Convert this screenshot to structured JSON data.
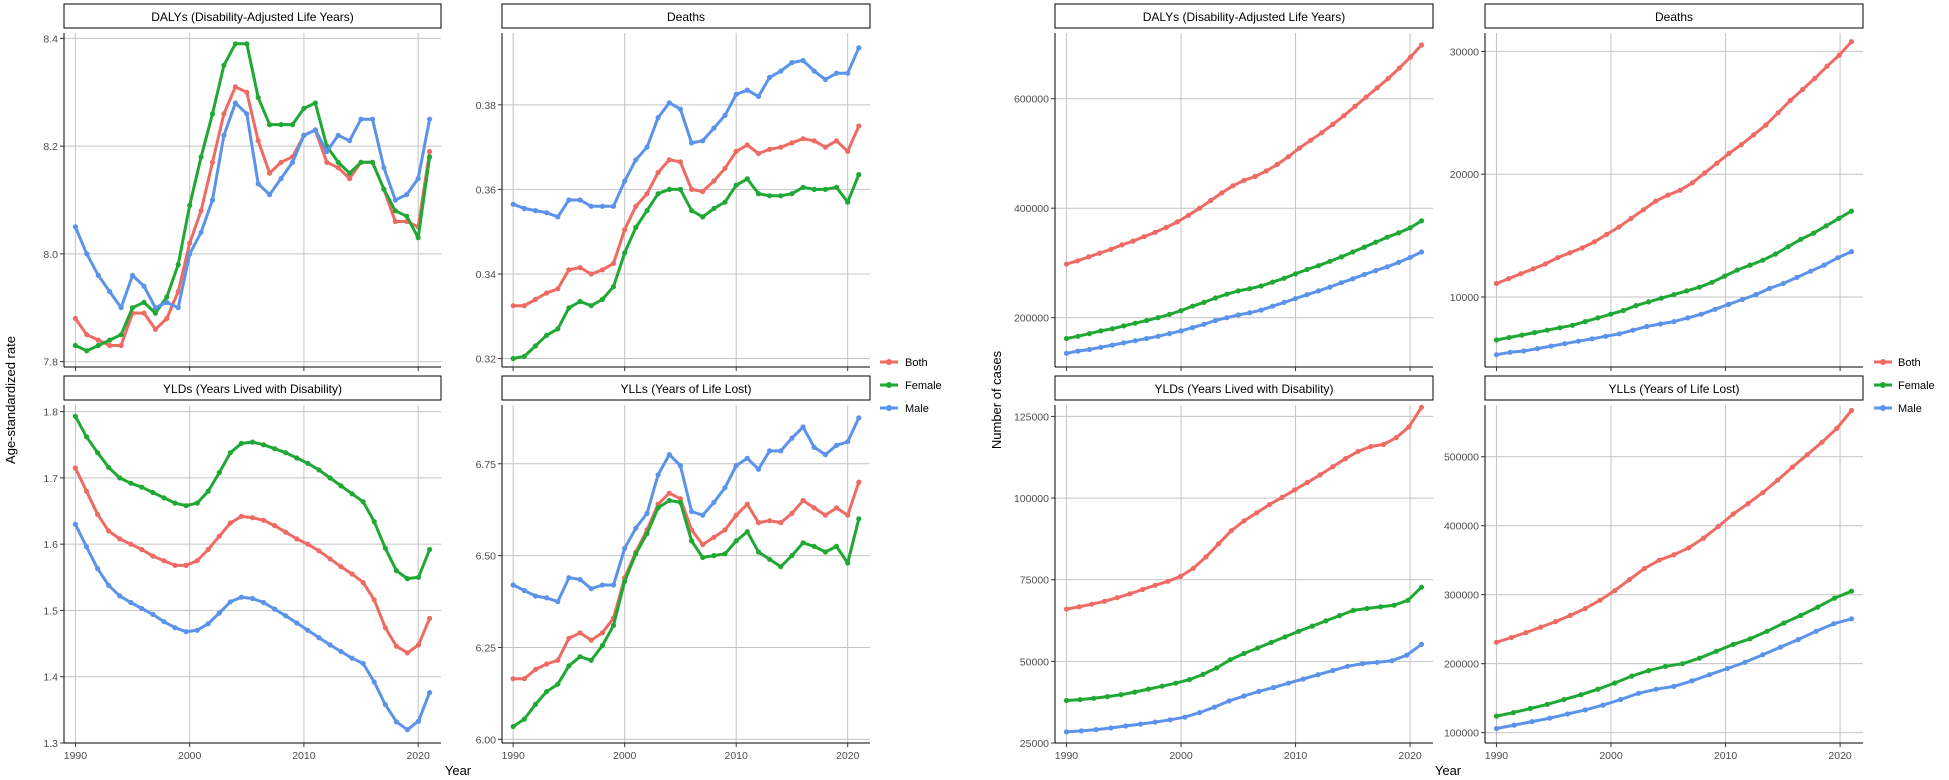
{
  "colors": {
    "Both": "#ee6b63",
    "Female": "#1fa834",
    "Male": "#5b93ea",
    "grid": "#c4c4c4",
    "axis": "#000000"
  },
  "legends": [
    {
      "items": [
        "Both",
        "Female",
        "Male"
      ]
    },
    {
      "items": [
        "Both",
        "Female",
        "Male"
      ]
    }
  ],
  "labels": {
    "left_ylabel": "Age-standardized rate",
    "right_ylabel": "Number of cases",
    "left_xlabel": "Year",
    "right_xlabel": "Year"
  },
  "chart_data": [
    {
      "type": "line",
      "title": "DALYs (Disability-Adjusted Life Years)",
      "xticks": [
        1990,
        2000,
        2010,
        2020
      ],
      "xlim": [
        1989,
        2022
      ],
      "yticks": [
        7.8,
        8.0,
        8.2,
        8.4
      ],
      "ytick_labels": [
        "7.8",
        "8.0",
        "8.2",
        "8.4"
      ],
      "ylim": [
        7.79,
        8.41
      ],
      "series": [
        {
          "name": "Both",
          "values": [
            7.88,
            7.85,
            7.84,
            7.83,
            7.83,
            7.89,
            7.89,
            7.86,
            7.88,
            7.93,
            8.02,
            8.08,
            8.17,
            8.26,
            8.31,
            8.3,
            8.21,
            8.15,
            8.17,
            8.18,
            8.22,
            8.23,
            8.17,
            8.16,
            8.14,
            8.17,
            8.17,
            8.12,
            8.06,
            8.06,
            8.05,
            8.19
          ]
        },
        {
          "name": "Female",
          "values": [
            7.83,
            7.82,
            7.83,
            7.84,
            7.85,
            7.9,
            7.91,
            7.89,
            7.92,
            7.98,
            8.09,
            8.18,
            8.26,
            8.35,
            8.39,
            8.39,
            8.29,
            8.24,
            8.24,
            8.24,
            8.27,
            8.28,
            8.2,
            8.17,
            8.15,
            8.17,
            8.17,
            8.12,
            8.08,
            8.07,
            8.03,
            8.18
          ]
        },
        {
          "name": "Male",
          "values": [
            8.05,
            8.0,
            7.96,
            7.93,
            7.9,
            7.96,
            7.94,
            7.9,
            7.91,
            7.9,
            8.0,
            8.04,
            8.1,
            8.22,
            8.28,
            8.26,
            8.13,
            8.11,
            8.14,
            8.17,
            8.22,
            8.23,
            8.19,
            8.22,
            8.21,
            8.25,
            8.25,
            8.16,
            8.1,
            8.11,
            8.14,
            8.25
          ]
        }
      ]
    },
    {
      "type": "line",
      "title": "Deaths",
      "xticks": [
        1990,
        2000,
        2010,
        2020
      ],
      "xlim": [
        1989,
        2022
      ],
      "yticks": [
        0.32,
        0.34,
        0.36,
        0.38
      ],
      "ytick_labels": [
        "0.32",
        "0.34",
        "0.36",
        "0.38"
      ],
      "ylim": [
        0.318,
        0.397
      ],
      "series": [
        {
          "name": "Both",
          "values": [
            0.3325,
            0.3325,
            0.334,
            0.3355,
            0.3365,
            0.341,
            0.3415,
            0.34,
            0.341,
            0.3425,
            0.3505,
            0.356,
            0.359,
            0.364,
            0.367,
            0.3665,
            0.36,
            0.3595,
            0.362,
            0.365,
            0.369,
            0.3705,
            0.3685,
            0.3695,
            0.37,
            0.371,
            0.372,
            0.3715,
            0.37,
            0.3715,
            0.369,
            0.375
          ]
        },
        {
          "name": "Female",
          "values": [
            0.32,
            0.3205,
            0.323,
            0.3255,
            0.327,
            0.332,
            0.3335,
            0.3325,
            0.334,
            0.337,
            0.345,
            0.351,
            0.355,
            0.359,
            0.36,
            0.36,
            0.355,
            0.3535,
            0.3555,
            0.357,
            0.361,
            0.3625,
            0.359,
            0.3585,
            0.3585,
            0.359,
            0.3605,
            0.36,
            0.36,
            0.3605,
            0.357,
            0.3635
          ]
        },
        {
          "name": "Male",
          "values": [
            0.3565,
            0.3555,
            0.355,
            0.3545,
            0.3535,
            0.3575,
            0.3575,
            0.356,
            0.356,
            0.356,
            0.362,
            0.367,
            0.37,
            0.377,
            0.3805,
            0.379,
            0.371,
            0.3715,
            0.3745,
            0.3775,
            0.3825,
            0.3835,
            0.382,
            0.3865,
            0.388,
            0.39,
            0.3905,
            0.388,
            0.386,
            0.3875,
            0.3875,
            0.3935
          ]
        }
      ]
    },
    {
      "type": "line",
      "title": "YLDs (Years Lived with Disability)",
      "xticks": [
        1990,
        2000,
        2010,
        2020
      ],
      "xlim": [
        1989,
        2022
      ],
      "yticks": [
        1.3,
        1.4,
        1.5,
        1.6,
        1.7,
        1.8
      ],
      "ytick_labels": [
        "1.3",
        "1.4",
        "1.5",
        "1.6",
        "1.7",
        "1.8"
      ],
      "ylim": [
        1.3,
        1.81
      ],
      "series": [
        {
          "name": "Both",
          "values": [
            1.715,
            1.68,
            1.645,
            1.62,
            1.608,
            1.6,
            1.592,
            1.582,
            1.575,
            1.568,
            1.568,
            1.575,
            1.592,
            1.612,
            1.632,
            1.642,
            1.64,
            1.636,
            1.628,
            1.618,
            1.608,
            1.6,
            1.59,
            1.578,
            1.566,
            1.555,
            1.542,
            1.516,
            1.474,
            1.446,
            1.436,
            1.448,
            1.488
          ]
        },
        {
          "name": "Female",
          "values": [
            1.793,
            1.762,
            1.738,
            1.716,
            1.7,
            1.692,
            1.686,
            1.678,
            1.67,
            1.662,
            1.658,
            1.662,
            1.68,
            1.708,
            1.738,
            1.752,
            1.754,
            1.75,
            1.744,
            1.738,
            1.73,
            1.722,
            1.712,
            1.7,
            1.688,
            1.676,
            1.664,
            1.634,
            1.594,
            1.56,
            1.548,
            1.55,
            1.592
          ]
        },
        {
          "name": "Male",
          "values": [
            1.63,
            1.596,
            1.563,
            1.538,
            1.522,
            1.512,
            1.503,
            1.494,
            1.483,
            1.474,
            1.468,
            1.47,
            1.48,
            1.496,
            1.513,
            1.52,
            1.518,
            1.512,
            1.502,
            1.492,
            1.481,
            1.47,
            1.459,
            1.448,
            1.438,
            1.428,
            1.42,
            1.392,
            1.358,
            1.332,
            1.32,
            1.333,
            1.376
          ]
        }
      ]
    },
    {
      "type": "line",
      "title": "YLLs (Years of Life Lost)",
      "xticks": [
        1990,
        2000,
        2010,
        2020
      ],
      "xlim": [
        1989,
        2022
      ],
      "yticks": [
        6.0,
        6.25,
        6.5,
        6.75
      ],
      "ytick_labels": [
        "6.00",
        "6.25",
        "6.50",
        "6.75"
      ],
      "ylim": [
        5.99,
        6.91
      ],
      "series": [
        {
          "name": "Both",
          "values": [
            6.165,
            6.165,
            6.19,
            6.205,
            6.215,
            6.275,
            6.29,
            6.27,
            6.29,
            6.33,
            6.44,
            6.51,
            6.57,
            6.64,
            6.67,
            6.655,
            6.57,
            6.53,
            6.55,
            6.57,
            6.61,
            6.64,
            6.59,
            6.595,
            6.59,
            6.615,
            6.65,
            6.63,
            6.61,
            6.63,
            6.61,
            6.7
          ]
        },
        {
          "name": "Female",
          "values": [
            6.035,
            6.055,
            6.095,
            6.13,
            6.15,
            6.2,
            6.225,
            6.215,
            6.255,
            6.31,
            6.43,
            6.505,
            6.56,
            6.63,
            6.65,
            6.645,
            6.54,
            6.495,
            6.5,
            6.505,
            6.54,
            6.565,
            6.51,
            6.49,
            6.47,
            6.5,
            6.535,
            6.525,
            6.51,
            6.525,
            6.48,
            6.6
          ]
        },
        {
          "name": "Male",
          "values": [
            6.42,
            6.405,
            6.39,
            6.385,
            6.375,
            6.44,
            6.435,
            6.41,
            6.42,
            6.42,
            6.52,
            6.575,
            6.615,
            6.72,
            6.775,
            6.745,
            6.62,
            6.61,
            6.645,
            6.685,
            6.745,
            6.765,
            6.735,
            6.785,
            6.785,
            6.82,
            6.85,
            6.795,
            6.775,
            6.8,
            6.81,
            6.875
          ]
        }
      ]
    },
    {
      "type": "line",
      "title": "DALYs (Disability-Adjusted Life Years)",
      "xticks": [
        1990,
        2000,
        2010,
        2020
      ],
      "xlim": [
        1989,
        2022
      ],
      "yticks": [
        200000,
        400000,
        600000
      ],
      "ytick_labels": [
        "200000",
        "400000",
        "600000"
      ],
      "ylim": [
        110000,
        720000
      ],
      "series": [
        {
          "name": "Both",
          "values": [
            298000,
            304000,
            311000,
            318000,
            325000,
            333000,
            340000,
            348000,
            356000,
            365000,
            375000,
            387000,
            400000,
            414000,
            428000,
            441000,
            451000,
            458000,
            468000,
            480000,
            494000,
            510000,
            524000,
            538000,
            553000,
            569000,
            586000,
            603000,
            620000,
            637000,
            656000,
            676000,
            698000
          ]
        },
        {
          "name": "Female",
          "values": [
            162000,
            166000,
            171000,
            176000,
            180000,
            185000,
            190000,
            195000,
            200000,
            206000,
            213000,
            221000,
            228000,
            236000,
            243000,
            249000,
            253000,
            258000,
            265000,
            272000,
            280000,
            288000,
            295000,
            303000,
            311000,
            320000,
            329000,
            338000,
            347000,
            355000,
            364000,
            377000
          ]
        },
        {
          "name": "Male",
          "values": [
            135000,
            139000,
            142000,
            146000,
            150000,
            154000,
            158000,
            162000,
            166000,
            171000,
            176000,
            182000,
            188000,
            195000,
            200000,
            205000,
            209000,
            214000,
            221000,
            228000,
            235000,
            242000,
            249000,
            256000,
            264000,
            271000,
            279000,
            286000,
            293000,
            301000,
            310000,
            320000
          ]
        }
      ]
    },
    {
      "type": "line",
      "title": "Deaths",
      "xticks": [
        1990,
        2000,
        2010,
        2020
      ],
      "xlim": [
        1989,
        2022
      ],
      "yticks": [
        10000,
        20000,
        30000
      ],
      "ytick_labels": [
        "10000",
        "20000",
        "30000"
      ],
      "ylim": [
        4300,
        31500
      ],
      "series": [
        {
          "name": "Both",
          "values": [
            11100,
            11500,
            11900,
            12300,
            12700,
            13200,
            13600,
            14000,
            14500,
            15100,
            15700,
            16400,
            17100,
            17800,
            18300,
            18700,
            19300,
            20100,
            20900,
            21700,
            22400,
            23200,
            24000,
            25000,
            26000,
            26900,
            27800,
            28800,
            29700,
            30800
          ]
        },
        {
          "name": "Female",
          "values": [
            6500,
            6700,
            6900,
            7100,
            7300,
            7500,
            7700,
            8000,
            8300,
            8600,
            8900,
            9300,
            9600,
            9900,
            10200,
            10500,
            10800,
            11200,
            11700,
            12200,
            12600,
            13000,
            13500,
            14100,
            14700,
            15200,
            15800,
            16400,
            17000
          ]
        },
        {
          "name": "Male",
          "values": [
            5300,
            5500,
            5600,
            5800,
            6000,
            6200,
            6400,
            6600,
            6800,
            7000,
            7300,
            7600,
            7800,
            8000,
            8300,
            8600,
            9000,
            9400,
            9800,
            10200,
            10700,
            11100,
            11600,
            12100,
            12600,
            13200,
            13700
          ]
        }
      ]
    },
    {
      "type": "line",
      "title": "YLDs (Years Lived with Disability)",
      "xticks": [
        1990,
        2000,
        2010,
        2020
      ],
      "xlim": [
        1989,
        2022
      ],
      "yticks": [
        25000,
        50000,
        75000,
        100000,
        125000
      ],
      "ytick_labels": [
        "25000",
        "50000",
        "75000",
        "100000",
        "125000"
      ],
      "ylim": [
        25000,
        128500
      ],
      "series": [
        {
          "name": "Both",
          "values": [
            66000,
            66700,
            67500,
            68400,
            69500,
            70700,
            72000,
            73300,
            74500,
            76000,
            78500,
            82000,
            86000,
            90000,
            93000,
            95500,
            98000,
            100200,
            102500,
            104800,
            107100,
            109600,
            112100,
            114300,
            115800,
            116400,
            118500,
            121800,
            127800
          ]
        },
        {
          "name": "Female",
          "values": [
            38000,
            38300,
            38700,
            39200,
            39800,
            40600,
            41500,
            42400,
            43300,
            44400,
            46000,
            48000,
            50500,
            52400,
            54100,
            55800,
            57500,
            59200,
            60800,
            62400,
            64000,
            65600,
            66200,
            66700,
            67200,
            68700,
            72700
          ]
        },
        {
          "name": "Male",
          "values": [
            28400,
            28700,
            29100,
            29600,
            30200,
            30800,
            31400,
            32100,
            32900,
            34300,
            36000,
            37900,
            39400,
            40800,
            42000,
            43300,
            44600,
            45900,
            47200,
            48500,
            49300,
            49700,
            50200,
            51900,
            55200
          ]
        }
      ]
    },
    {
      "type": "line",
      "title": "YLLs (Years of Life Lost)",
      "xticks": [
        1990,
        2000,
        2010,
        2020
      ],
      "xlim": [
        1989,
        2022
      ],
      "yticks": [
        100000,
        200000,
        300000,
        400000,
        500000
      ],
      "ytick_labels": [
        "100000",
        "200000",
        "300000",
        "400000",
        "500000"
      ],
      "ylim": [
        85000,
        575000
      ],
      "series": [
        {
          "name": "Both",
          "values": [
            231000,
            238000,
            245000,
            253000,
            261000,
            270000,
            280000,
            292000,
            306000,
            322000,
            338000,
            350000,
            358000,
            368000,
            382000,
            399000,
            417000,
            432000,
            448000,
            466000,
            485000,
            503000,
            521000,
            541000,
            567000
          ]
        },
        {
          "name": "Female",
          "values": [
            124000,
            129000,
            135000,
            141000,
            148000,
            155000,
            163000,
            172000,
            182000,
            190000,
            196000,
            200000,
            208000,
            218000,
            228000,
            236000,
            247000,
            259000,
            270000,
            282000,
            295000,
            305000
          ]
        },
        {
          "name": "Male",
          "values": [
            106000,
            111000,
            116000,
            121000,
            127000,
            133000,
            140000,
            148000,
            157000,
            163000,
            167000,
            175000,
            184000,
            193000,
            202000,
            213000,
            224000,
            235000,
            247000,
            258000,
            265000
          ]
        }
      ]
    }
  ]
}
